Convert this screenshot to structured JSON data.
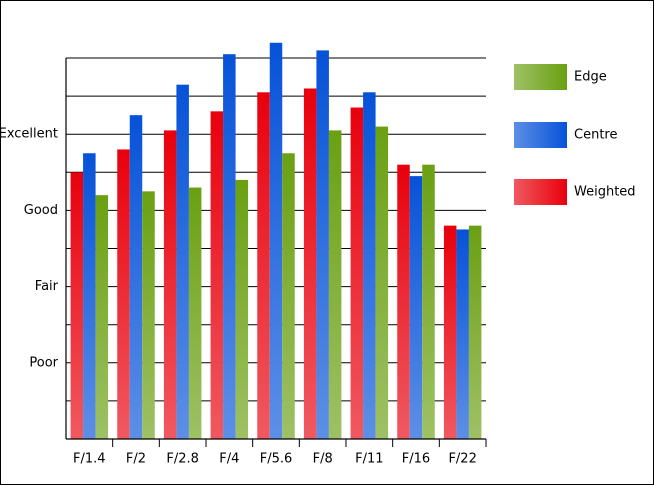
{
  "chart_data": {
    "type": "bar",
    "categories": [
      "F/1.4",
      "F/2",
      "F/2.8",
      "F/4",
      "F/5.6",
      "F/8",
      "F/11",
      "F/16",
      "F/22"
    ],
    "series": [
      {
        "name": "Weighted",
        "color": "#e8000c",
        "values": [
          7.0,
          7.6,
          8.1,
          8.6,
          9.1,
          9.2,
          8.7,
          7.2,
          5.6
        ]
      },
      {
        "name": "Centre",
        "color": "#0652d8",
        "values": [
          7.5,
          8.5,
          9.3,
          10.1,
          10.4,
          10.2,
          9.1,
          6.9,
          5.5
        ]
      },
      {
        "name": "Edge",
        "color": "#6aa012",
        "values": [
          6.4,
          6.5,
          6.6,
          6.8,
          7.5,
          8.1,
          8.2,
          7.2,
          5.6
        ]
      }
    ],
    "ylim": [
      0,
      10
    ],
    "yticks": [
      {
        "value": 2,
        "label": "Poor"
      },
      {
        "value": 4,
        "label": "Fair"
      },
      {
        "value": 6,
        "label": "Good"
      },
      {
        "value": 8,
        "label": "Excellent"
      }
    ],
    "minor_yticks": [
      0,
      1,
      3,
      5,
      7,
      9,
      10
    ],
    "grid": true
  }
}
